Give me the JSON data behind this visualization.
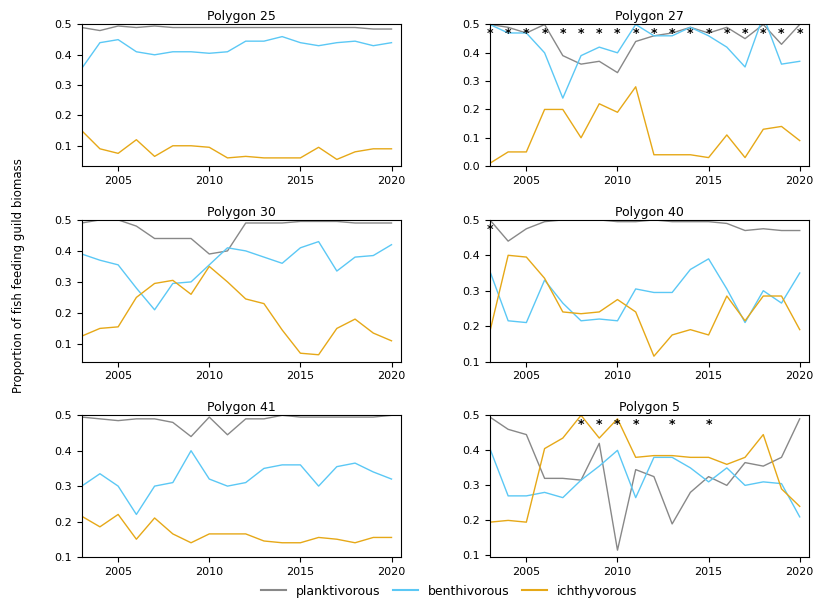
{
  "years": [
    2003,
    2004,
    2005,
    2006,
    2007,
    2008,
    2009,
    2010,
    2011,
    2012,
    2013,
    2014,
    2015,
    2016,
    2017,
    2018,
    2019,
    2020
  ],
  "colors": {
    "planktivorous": "#888888",
    "benthivorous": "#5bc8f5",
    "ichthyvorous": "#e6a817"
  },
  "data": {
    "Polygon 25": {
      "planktivorous": [
        0.49,
        0.48,
        0.495,
        0.49,
        0.495,
        0.49,
        0.49,
        0.49,
        0.49,
        0.49,
        0.49,
        0.49,
        0.49,
        0.49,
        0.49,
        0.49,
        0.485,
        0.485
      ],
      "benthivorous": [
        0.355,
        0.44,
        0.45,
        0.41,
        0.4,
        0.41,
        0.41,
        0.405,
        0.41,
        0.445,
        0.445,
        0.46,
        0.44,
        0.43,
        0.44,
        0.445,
        0.43,
        0.44
      ],
      "ichthyvorous": [
        0.15,
        0.09,
        0.075,
        0.12,
        0.065,
        0.1,
        0.1,
        0.095,
        0.06,
        0.065,
        0.06,
        0.06,
        0.06,
        0.095,
        0.055,
        0.08,
        0.09,
        0.09
      ],
      "stars": []
    },
    "Polygon 27": {
      "planktivorous": [
        0.5,
        0.49,
        0.47,
        0.5,
        0.39,
        0.36,
        0.37,
        0.33,
        0.44,
        0.46,
        0.47,
        0.49,
        0.47,
        0.49,
        0.45,
        0.5,
        0.43,
        0.5
      ],
      "benthivorous": [
        0.5,
        0.47,
        0.47,
        0.4,
        0.24,
        0.39,
        0.42,
        0.4,
        0.5,
        0.46,
        0.46,
        0.49,
        0.46,
        0.42,
        0.35,
        0.53,
        0.36,
        0.37
      ],
      "ichthyvorous": [
        0.01,
        0.05,
        0.05,
        0.2,
        0.2,
        0.1,
        0.22,
        0.19,
        0.28,
        0.04,
        0.04,
        0.04,
        0.03,
        0.11,
        0.03,
        0.13,
        0.14,
        0.09
      ],
      "stars": [
        2003,
        2004,
        2005,
        2006,
        2007,
        2008,
        2009,
        2010,
        2011,
        2012,
        2013,
        2014,
        2015,
        2016,
        2017,
        2018,
        2019,
        2020
      ]
    },
    "Polygon 30": {
      "planktivorous": [
        0.49,
        0.5,
        0.5,
        0.48,
        0.44,
        0.44,
        0.44,
        0.39,
        0.4,
        0.49,
        0.49,
        0.49,
        0.495,
        0.495,
        0.495,
        0.49,
        0.49,
        0.49
      ],
      "benthivorous": [
        0.39,
        0.37,
        0.355,
        0.28,
        0.21,
        0.295,
        0.3,
        0.355,
        0.41,
        0.4,
        0.38,
        0.36,
        0.41,
        0.43,
        0.335,
        0.38,
        0.385,
        0.42
      ],
      "ichthyvorous": [
        0.125,
        0.15,
        0.155,
        0.25,
        0.295,
        0.305,
        0.26,
        0.35,
        0.3,
        0.245,
        0.23,
        0.145,
        0.07,
        0.065,
        0.15,
        0.18,
        0.135,
        0.11
      ],
      "stars": []
    },
    "Polygon 40": {
      "planktivorous": [
        0.5,
        0.44,
        0.475,
        0.495,
        0.5,
        0.5,
        0.5,
        0.495,
        0.495,
        0.5,
        0.495,
        0.495,
        0.495,
        0.49,
        0.47,
        0.475,
        0.47,
        0.47
      ],
      "benthivorous": [
        0.355,
        0.215,
        0.21,
        0.33,
        0.265,
        0.215,
        0.22,
        0.215,
        0.305,
        0.295,
        0.295,
        0.36,
        0.39,
        0.305,
        0.21,
        0.3,
        0.265,
        0.35
      ],
      "ichthyvorous": [
        0.185,
        0.4,
        0.395,
        0.335,
        0.24,
        0.235,
        0.24,
        0.275,
        0.24,
        0.115,
        0.175,
        0.19,
        0.175,
        0.285,
        0.215,
        0.285,
        0.285,
        0.19
      ],
      "stars": [
        2003
      ]
    },
    "Polygon 41": {
      "planktivorous": [
        0.495,
        0.49,
        0.485,
        0.49,
        0.49,
        0.48,
        0.44,
        0.495,
        0.445,
        0.49,
        0.49,
        0.5,
        0.495,
        0.495,
        0.495,
        0.495,
        0.495,
        0.5
      ],
      "benthivorous": [
        0.3,
        0.335,
        0.3,
        0.22,
        0.3,
        0.31,
        0.4,
        0.32,
        0.3,
        0.31,
        0.35,
        0.36,
        0.36,
        0.3,
        0.355,
        0.365,
        0.34,
        0.32
      ],
      "ichthyvorous": [
        0.215,
        0.185,
        0.22,
        0.15,
        0.21,
        0.165,
        0.14,
        0.165,
        0.165,
        0.165,
        0.145,
        0.14,
        0.14,
        0.155,
        0.15,
        0.14,
        0.155,
        0.155
      ],
      "stars": []
    },
    "Polygon 5": {
      "planktivorous": [
        0.495,
        0.46,
        0.445,
        0.32,
        0.32,
        0.315,
        0.42,
        0.115,
        0.345,
        0.325,
        0.19,
        0.28,
        0.325,
        0.3,
        0.365,
        0.355,
        0.38,
        0.49
      ],
      "benthivorous": [
        0.405,
        0.27,
        0.27,
        0.28,
        0.265,
        0.315,
        0.355,
        0.4,
        0.265,
        0.38,
        0.38,
        0.35,
        0.31,
        0.35,
        0.3,
        0.31,
        0.305,
        0.21
      ],
      "ichthyvorous": [
        0.195,
        0.2,
        0.195,
        0.405,
        0.435,
        0.5,
        0.435,
        0.49,
        0.38,
        0.385,
        0.385,
        0.38,
        0.38,
        0.36,
        0.38,
        0.445,
        0.29,
        0.24
      ],
      "stars": [
        2008,
        2009,
        2010,
        2011,
        2013,
        2015
      ]
    }
  },
  "ylims": {
    "Polygon 25": [
      null,
      0.5
    ],
    "Polygon 27": [
      0.0,
      0.5
    ],
    "Polygon 30": [
      null,
      0.5
    ],
    "Polygon 40": [
      0.1,
      0.5
    ],
    "Polygon 41": [
      0.1,
      0.5
    ],
    "Polygon 5": [
      null,
      0.5
    ]
  },
  "yticks": {
    "Polygon 25": [
      0.1,
      0.2,
      0.3,
      0.4,
      0.5
    ],
    "Polygon 27": [
      0.0,
      0.1,
      0.2,
      0.3,
      0.4,
      0.5
    ],
    "Polygon 30": [
      0.1,
      0.2,
      0.3,
      0.4,
      0.5
    ],
    "Polygon 40": [
      0.1,
      0.2,
      0.3,
      0.4,
      0.5
    ],
    "Polygon 41": [
      0.1,
      0.2,
      0.3,
      0.4,
      0.5
    ],
    "Polygon 5": [
      0.1,
      0.2,
      0.3,
      0.4,
      0.5
    ]
  },
  "ylabel": "Proportion of fish feeding guild biomass",
  "xticks": [
    2005,
    2010,
    2015,
    2020
  ]
}
